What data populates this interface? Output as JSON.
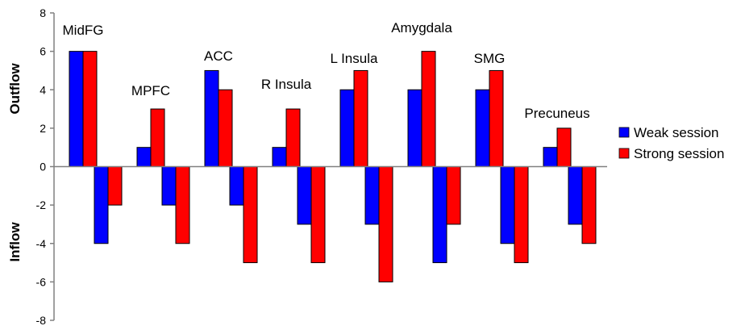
{
  "chart_data": {
    "type": "bar",
    "categories": [
      "MidFG",
      "MPFC",
      "ACC",
      "R Insula",
      "L Insula",
      "Amygdala",
      "SMG",
      "Precuneus"
    ],
    "series": [
      {
        "name": "Weak session",
        "color": "#0000ff",
        "outflow": [
          6,
          1,
          5,
          1,
          4,
          4,
          4,
          1
        ],
        "inflow": [
          -4,
          -2,
          -2,
          -3,
          -3,
          -5,
          -4,
          -3
        ]
      },
      {
        "name": "Strong session",
        "color": "#ff0000",
        "outflow": [
          6,
          3,
          4,
          3,
          5,
          6,
          5,
          2
        ],
        "inflow": [
          -2,
          -4,
          -5,
          -5,
          -6,
          -3,
          -5,
          -4
        ]
      }
    ],
    "ylabel_top": "Outflow",
    "ylabel_bottom": "Inflow",
    "ylim": [
      -8,
      8
    ],
    "yticks": [
      8,
      6,
      4,
      2,
      0,
      -2,
      -4,
      -6,
      -8
    ],
    "grid": false,
    "legend_position": "right"
  }
}
